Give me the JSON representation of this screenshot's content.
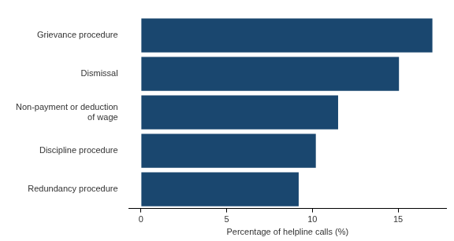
{
  "chart_data": {
    "type": "bar",
    "orientation": "horizontal",
    "x_label": "Percentage of helpline calls (%)",
    "categories": [
      "Grievance procedure",
      "Dismissal",
      "Non-payment or deduction of wage",
      "Discipline procedure",
      "Redundancy procedure"
    ],
    "values": [
      17.0,
      15.05,
      11.5,
      10.2,
      9.2
    ],
    "color": "#1a476f",
    "xlim": [
      -0.7,
      17.8
    ],
    "xticks": [
      0,
      5,
      10,
      15
    ],
    "grid": false
  }
}
